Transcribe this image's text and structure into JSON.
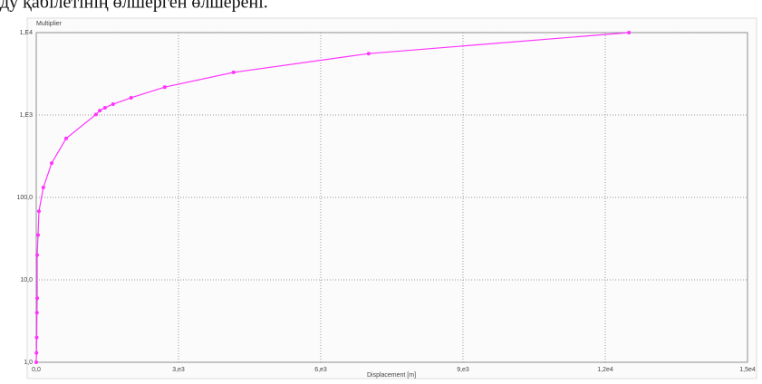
{
  "caption": "ду қабілетінің өлшерген өлшерені.",
  "chart_data": {
    "type": "line",
    "ylabel": "Multiplier",
    "xlabel": "Displacement [m]",
    "log_y": true,
    "grid": true,
    "color": "#ff33ff",
    "x": [
      0,
      5,
      10,
      15,
      20,
      20,
      38,
      57,
      150,
      325,
      630,
      1260,
      1340,
      1450,
      1620,
      2000,
      2710,
      4160,
      7010,
      12500
    ],
    "values": [
      1,
      1.3,
      2,
      4,
      6,
      20,
      35,
      68,
      132,
      261,
      519,
      1016,
      1132,
      1223,
      1355,
      1619,
      2180,
      3290,
      5560,
      10000
    ],
    "xlim": [
      0,
      15000
    ],
    "xticks": [
      {
        "value": 0,
        "label": "0,0"
      },
      {
        "value": 3000,
        "label": "3,e3"
      },
      {
        "value": 6000,
        "label": "6,e3"
      },
      {
        "value": 9000,
        "label": "9,e3"
      },
      {
        "value": 12000,
        "label": "1,2e4"
      },
      {
        "value": 15000,
        "label": "1,5e4"
      }
    ],
    "ylim": [
      1,
      10000
    ],
    "yticks": [
      {
        "value": 1,
        "label": "1,0"
      },
      {
        "value": 10,
        "label": "10,0"
      },
      {
        "value": 100,
        "label": "100,0"
      },
      {
        "value": 1000,
        "label": "1,E3"
      },
      {
        "value": 10000,
        "label": "1,E4"
      }
    ]
  }
}
